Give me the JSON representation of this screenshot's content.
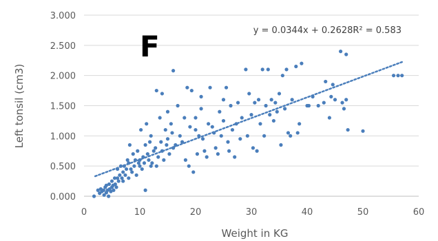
{
  "chart_data": {
    "type": "scatter",
    "title": "",
    "panel_label": "F",
    "xlabel": "Weight in KG",
    "ylabel": "Left tonsil (cm3)",
    "xlim": [
      0,
      60
    ],
    "ylim": [
      0,
      3
    ],
    "x_ticks": [
      0,
      10,
      20,
      30,
      40,
      50,
      60
    ],
    "x_tick_labels": [
      "0",
      "10",
      "20",
      "30",
      "40",
      "50",
      "60"
    ],
    "y_ticks": [
      0,
      0.5,
      1,
      1.5,
      2,
      2.5,
      3
    ],
    "y_tick_labels": [
      "0.000",
      "0.500",
      "1.000",
      "1.500",
      "2.000",
      "2.500",
      "3.000"
    ],
    "grid": "horizontal",
    "legend": "none",
    "point_color": "#4a7ebb",
    "trendline": {
      "type": "linear",
      "slope": 0.0344,
      "intercept": 0.2628,
      "equation_label": "y = 0.0344x + 0.2628R² = 0.583",
      "style": "dotted",
      "color": "#4a7ebb"
    },
    "series": [
      {
        "points": [
          [
            1.8,
            0.0
          ],
          [
            2.5,
            0.1
          ],
          [
            2.8,
            0.05
          ],
          [
            3.0,
            0.12
          ],
          [
            3.2,
            0.08
          ],
          [
            3.5,
            0.1
          ],
          [
            3.6,
            0.02
          ],
          [
            3.8,
            0.15
          ],
          [
            4.0,
            0.06
          ],
          [
            4.0,
            0.18
          ],
          [
            4.2,
            0.1
          ],
          [
            4.4,
            0.0
          ],
          [
            4.5,
            0.2
          ],
          [
            4.6,
            0.12
          ],
          [
            4.8,
            0.08
          ],
          [
            5.0,
            0.15
          ],
          [
            5.0,
            0.25
          ],
          [
            5.2,
            0.18
          ],
          [
            5.3,
            0.1
          ],
          [
            5.5,
            0.3
          ],
          [
            5.6,
            0.2
          ],
          [
            5.8,
            0.15
          ],
          [
            6.0,
            0.3
          ],
          [
            6.0,
            0.45
          ],
          [
            6.2,
            0.25
          ],
          [
            6.4,
            0.35
          ],
          [
            6.6,
            0.5
          ],
          [
            6.8,
            0.3
          ],
          [
            7.0,
            0.4
          ],
          [
            7.0,
            0.25
          ],
          [
            7.2,
            0.5
          ],
          [
            7.4,
            0.35
          ],
          [
            7.6,
            0.45
          ],
          [
            7.8,
            0.6
          ],
          [
            8.0,
            0.3
          ],
          [
            8.0,
            0.55
          ],
          [
            8.2,
            0.85
          ],
          [
            8.4,
            0.45
          ],
          [
            8.6,
            0.4
          ],
          [
            8.8,
            0.7
          ],
          [
            9.0,
            0.5
          ],
          [
            9.2,
            0.6
          ],
          [
            9.4,
            0.35
          ],
          [
            9.6,
            0.75
          ],
          [
            9.8,
            0.55
          ],
          [
            10.0,
            0.5
          ],
          [
            10.0,
            0.6
          ],
          [
            10.2,
            1.1
          ],
          [
            10.4,
            0.45
          ],
          [
            10.6,
            0.65
          ],
          [
            10.8,
            0.55
          ],
          [
            11.0,
            0.85
          ],
          [
            11.0,
            0.1
          ],
          [
            11.2,
            1.2
          ],
          [
            11.4,
            0.7
          ],
          [
            11.6,
            0.6
          ],
          [
            11.8,
            0.9
          ],
          [
            12.0,
            0.5
          ],
          [
            12.0,
            1.0
          ],
          [
            12.2,
            0.55
          ],
          [
            12.5,
            0.75
          ],
          [
            12.8,
            0.8
          ],
          [
            13.0,
            1.75
          ],
          [
            13.0,
            0.5
          ],
          [
            13.3,
            0.65
          ],
          [
            13.6,
            1.3
          ],
          [
            13.8,
            0.9
          ],
          [
            14.0,
            0.75
          ],
          [
            14.0,
            1.7
          ],
          [
            14.3,
            0.6
          ],
          [
            14.6,
            1.1
          ],
          [
            14.8,
            0.85
          ],
          [
            15.0,
            1.4
          ],
          [
            15.0,
            0.95
          ],
          [
            15.3,
            0.7
          ],
          [
            15.6,
            1.2
          ],
          [
            15.8,
            1.05
          ],
          [
            16.0,
            2.08
          ],
          [
            16.0,
            0.8
          ],
          [
            16.4,
            0.85
          ],
          [
            16.8,
            1.5
          ],
          [
            17.2,
            1.0
          ],
          [
            17.6,
            0.9
          ],
          [
            18.0,
            1.3
          ],
          [
            18.2,
            0.6
          ],
          [
            18.5,
            1.8
          ],
          [
            18.8,
            0.5
          ],
          [
            19.0,
            1.15
          ],
          [
            19.3,
            1.75
          ],
          [
            19.6,
            0.4
          ],
          [
            20.0,
            1.3
          ],
          [
            20.0,
            1.1
          ],
          [
            20.3,
            0.7
          ],
          [
            20.6,
            1.0
          ],
          [
            21.0,
            1.65
          ],
          [
            21.0,
            1.45
          ],
          [
            21.3,
            0.95
          ],
          [
            21.6,
            0.75
          ],
          [
            22.0,
            0.65
          ],
          [
            22.3,
            1.2
          ],
          [
            22.6,
            1.8
          ],
          [
            23.0,
            1.15
          ],
          [
            23.3,
            1.05
          ],
          [
            23.6,
            0.8
          ],
          [
            24.0,
            0.7
          ],
          [
            24.3,
            1.4
          ],
          [
            24.6,
            1.0
          ],
          [
            25.0,
            1.6
          ],
          [
            25.0,
            1.25
          ],
          [
            25.5,
            1.8
          ],
          [
            25.8,
            0.9
          ],
          [
            26.0,
            0.75
          ],
          [
            26.3,
            1.5
          ],
          [
            26.6,
            1.1
          ],
          [
            27.0,
            0.65
          ],
          [
            27.3,
            1.2
          ],
          [
            27.6,
            1.55
          ],
          [
            28.0,
            0.95
          ],
          [
            28.3,
            1.3
          ],
          [
            29.0,
            2.1
          ],
          [
            29.3,
            1.0
          ],
          [
            29.6,
            1.7
          ],
          [
            30.0,
            1.35
          ],
          [
            30.3,
            0.8
          ],
          [
            30.6,
            1.55
          ],
          [
            31.0,
            0.75
          ],
          [
            31.3,
            1.6
          ],
          [
            31.6,
            1.2
          ],
          [
            32.0,
            2.1
          ],
          [
            32.3,
            1.0
          ],
          [
            32.6,
            1.5
          ],
          [
            33.0,
            2.1
          ],
          [
            33.3,
            1.35
          ],
          [
            33.6,
            1.6
          ],
          [
            34.0,
            1.25
          ],
          [
            34.3,
            1.55
          ],
          [
            34.6,
            1.4
          ],
          [
            35.0,
            1.7
          ],
          [
            35.3,
            0.85
          ],
          [
            35.6,
            2.0
          ],
          [
            36.0,
            1.45
          ],
          [
            36.3,
            2.1
          ],
          [
            36.6,
            1.05
          ],
          [
            37.0,
            1.0
          ],
          [
            37.3,
            1.6
          ],
          [
            38.0,
            2.15
          ],
          [
            38.3,
            1.05
          ],
          [
            38.6,
            1.2
          ],
          [
            39.0,
            2.2
          ],
          [
            40.0,
            1.5
          ],
          [
            40.3,
            1.5
          ],
          [
            41.0,
            1.65
          ],
          [
            42.0,
            1.5
          ],
          [
            43.0,
            1.55
          ],
          [
            43.3,
            1.9
          ],
          [
            44.0,
            1.3
          ],
          [
            44.3,
            1.65
          ],
          [
            44.6,
            1.85
          ],
          [
            45.0,
            1.6
          ],
          [
            46.0,
            2.4
          ],
          [
            46.3,
            1.55
          ],
          [
            46.6,
            1.45
          ],
          [
            47.0,
            2.35
          ],
          [
            47.0,
            1.6
          ],
          [
            47.3,
            1.1
          ],
          [
            50.0,
            1.08
          ],
          [
            55.5,
            2.0
          ],
          [
            56.3,
            2.0
          ],
          [
            57.0,
            2.0
          ]
        ]
      }
    ]
  }
}
